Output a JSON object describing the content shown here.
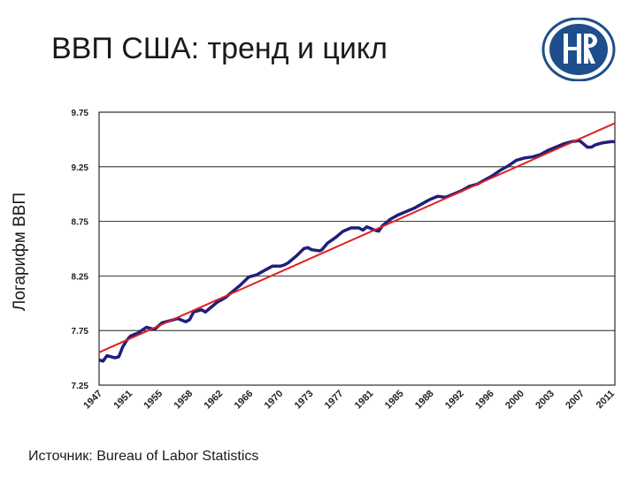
{
  "slide": {
    "title": "ВВП США: тренд и цикл",
    "source": "Источник: Bureau of Labor Statistics"
  },
  "logo": {
    "icon": "hse-logo-icon",
    "ring_color": "#1f4e8c"
  },
  "chart_data": {
    "type": "line",
    "title": "",
    "xlabel": "",
    "ylabel": "Логарифм ВВП",
    "ylim": [
      7.25,
      9.75
    ],
    "yticks": [
      "7.25",
      "7.75",
      "8.25",
      "8.75",
      "9.25",
      "9.75"
    ],
    "xlim": [
      1947,
      2012.5
    ],
    "xticks": [
      "1947",
      "1951",
      "1955",
      "1958",
      "1962",
      "1966",
      "1970",
      "1973",
      "1977",
      "1981",
      "1985",
      "1988",
      "1992",
      "1996",
      "2000",
      "2003",
      "2007",
      "2011"
    ],
    "grid": "horizontal",
    "legend": "none",
    "series": [
      {
        "color": "#1f1f7a",
        "x": [
          1947,
          1947.5,
          1948,
          1949,
          1949.5,
          1950,
          1950.5,
          1951,
          1952,
          1953,
          1953.5,
          1954,
          1955,
          1956,
          1957,
          1958,
          1958.5,
          1959,
          1960,
          1960.5,
          1961,
          1962,
          1963,
          1964,
          1965,
          1966,
          1967,
          1968,
          1969,
          1970,
          1970.5,
          1971,
          1972,
          1973,
          1973.5,
          1974,
          1975,
          1975.3,
          1976,
          1977,
          1978,
          1979,
          1980,
          1980.5,
          1981,
          1982,
          1982.5,
          1983,
          1984,
          1985,
          1986,
          1987,
          1988,
          1989,
          1990,
          1991,
          1992,
          1993,
          1994,
          1995,
          1996,
          1997,
          1998,
          1999,
          2000,
          2001,
          2002,
          2003,
          2004,
          2005,
          2006,
          2007,
          2008,
          2008.5,
          2009,
          2009.5,
          2010,
          2011,
          2012,
          2012.5
        ],
        "values": [
          7.48,
          7.47,
          7.52,
          7.5,
          7.51,
          7.6,
          7.66,
          7.7,
          7.73,
          7.78,
          7.77,
          7.76,
          7.82,
          7.84,
          7.86,
          7.83,
          7.85,
          7.92,
          7.94,
          7.92,
          7.95,
          8.01,
          8.05,
          8.11,
          8.17,
          8.24,
          8.26,
          8.3,
          8.34,
          8.34,
          8.35,
          8.37,
          8.43,
          8.5,
          8.51,
          8.49,
          8.48,
          8.49,
          8.55,
          8.6,
          8.66,
          8.69,
          8.69,
          8.67,
          8.7,
          8.67,
          8.66,
          8.71,
          8.77,
          8.81,
          8.84,
          8.87,
          8.91,
          8.95,
          8.98,
          8.97,
          9.0,
          9.03,
          9.07,
          9.09,
          9.13,
          9.17,
          9.22,
          9.26,
          9.31,
          9.33,
          9.34,
          9.36,
          9.4,
          9.43,
          9.46,
          9.48,
          9.49,
          9.46,
          9.43,
          9.43,
          9.45,
          9.47,
          9.48,
          9.48
        ]
      },
      {
        "color": "#e02020",
        "x": [
          1947,
          2012.5
        ],
        "values": [
          7.55,
          9.65
        ]
      }
    ]
  }
}
